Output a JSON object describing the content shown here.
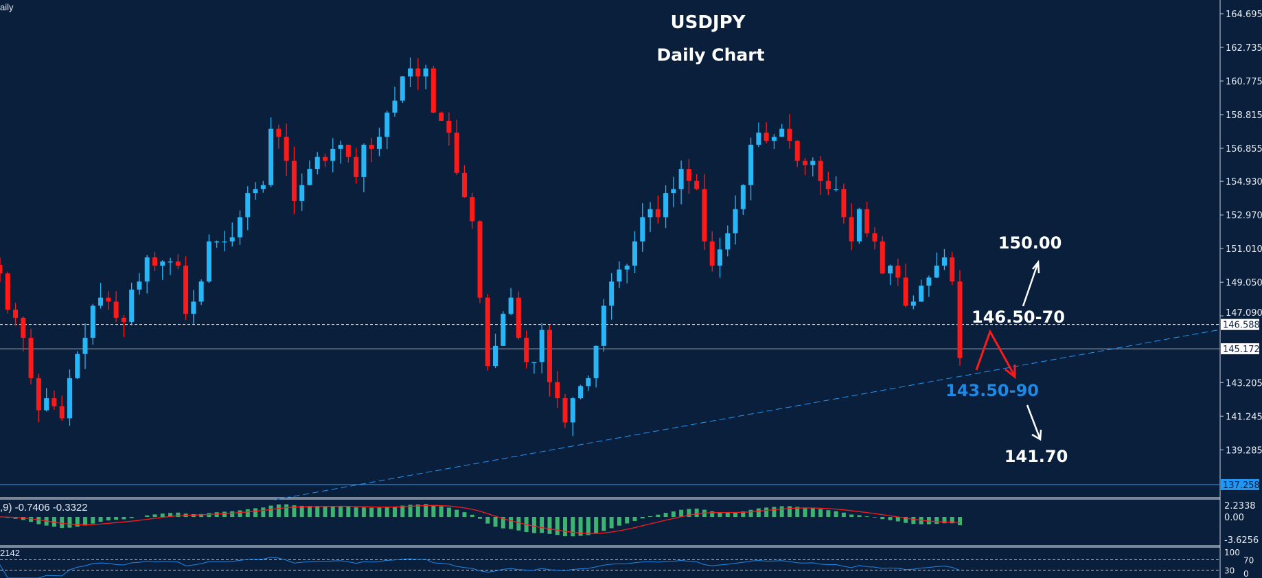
{
  "header": {
    "timeframe_label": "aily",
    "macd_label": ",9) -0.7406 -0.3322",
    "rsi_label": "2142"
  },
  "chart_data": {
    "type": "candlestick",
    "title": "USDJPY",
    "subtitle": "Daily Chart",
    "price_axis_ticks": [
      "164.695",
      "162.735",
      "160.775",
      "158.815",
      "156.855",
      "154.930",
      "152.970",
      "151.010",
      "149.050",
      "147.090",
      "143.205",
      "141.245",
      "139.285"
    ],
    "ylim": [
      136.3,
      165.5
    ],
    "closes": [
      149.56,
      147.45,
      146.98,
      145.81,
      143.46,
      141.59,
      142.29,
      141.82,
      141.12,
      143.46,
      144.87,
      145.81,
      147.68,
      148.15,
      147.92,
      146.98,
      146.74,
      148.62,
      149.09,
      150.5,
      150.02,
      150.26,
      150.26,
      150.02,
      147.21,
      147.92,
      149.09,
      151.43,
      151.43,
      151.43,
      151.67,
      152.84,
      154.25,
      154.48,
      154.71,
      157.99,
      157.52,
      156.12,
      153.78,
      154.71,
      155.65,
      156.35,
      156.12,
      156.82,
      157.06,
      156.35,
      155.18,
      157.06,
      156.82,
      157.52,
      158.93,
      159.63,
      161.04,
      161.51,
      161.04,
      161.51,
      158.93,
      158.46,
      157.76,
      155.42,
      154.01,
      152.6,
      148.15,
      144.17,
      145.34,
      147.21,
      148.15,
      145.81,
      144.4,
      144.4,
      146.27,
      143.23,
      142.29,
      140.88,
      142.29,
      143.0,
      143.46,
      145.34,
      147.68,
      149.09,
      149.79,
      150.02,
      151.43,
      152.84,
      153.31,
      152.84,
      154.25,
      154.48,
      155.65,
      154.95,
      154.48,
      151.43,
      150.02,
      150.96,
      151.9,
      153.31,
      154.71,
      157.06,
      157.76,
      157.29,
      157.52,
      157.99,
      157.29,
      156.12,
      155.88,
      156.12,
      154.95,
      154.48,
      154.48,
      152.84,
      151.43,
      153.31,
      151.9,
      151.43,
      149.56,
      150.02,
      149.32,
      147.68,
      147.92,
      148.85,
      149.32,
      150.02,
      150.5,
      149.09,
      144.63
    ],
    "horizontal_lines": [
      {
        "price": "146.588",
        "style": "dashed",
        "color": "#ffffff"
      },
      {
        "price": "145.172",
        "style": "solid",
        "color": "#9aa4b2"
      },
      {
        "price": "137.258",
        "style": "solid",
        "color": "#2196f3"
      }
    ],
    "trendline": {
      "color": "#2196f3",
      "style": "dashed",
      "from_price": 139.8,
      "to_price": 146.6
    },
    "annotations": [
      {
        "text": "150.00",
        "color": "#ffffff"
      },
      {
        "text": "146.50-70",
        "color": "#ffffff"
      },
      {
        "text": "143.50-90",
        "color": "#1e88e5"
      },
      {
        "text": "141.70",
        "color": "#ffffff"
      }
    ],
    "colors": {
      "up": "#29b6f6",
      "down": "#ff1a1a",
      "background": "#0a1f3c",
      "macd_hist": "#3cb371",
      "macd_signal": "#ff1a1a",
      "rsi": "#1e88e5"
    },
    "macd": {
      "ticks": [
        "2.2338",
        "0.00",
        "-3.6256"
      ]
    },
    "rsi": {
      "ticks": [
        "100",
        "70",
        "30",
        "0"
      ]
    }
  }
}
